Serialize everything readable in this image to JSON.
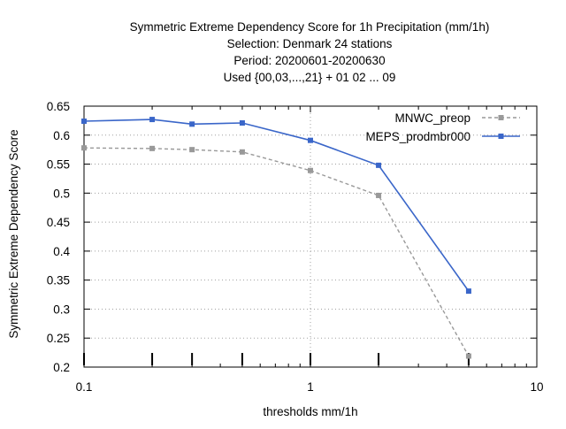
{
  "chart_data": {
    "type": "line",
    "title_lines": [
      "Symmetric Extreme Dependency Score  for 1h Precipitation (mm/1h)",
      "Selection: Denmark     24 stations",
      "Period: 20200601-20200630",
      "Used {00,03,...,21} + 01 02 ... 09"
    ],
    "xlabel": "thresholds mm/1h",
    "ylabel": "Symmetric Extreme Dependency Score",
    "x_scale": "log",
    "xlim": [
      0.1,
      10
    ],
    "ylim": [
      0.2,
      0.65
    ],
    "x_ticks": [
      {
        "value": 0.1,
        "label": "0.1"
      },
      {
        "value": 1,
        "label": "1"
      },
      {
        "value": 10,
        "label": "10"
      }
    ],
    "y_ticks": [
      {
        "value": 0.2,
        "label": "0.2"
      },
      {
        "value": 0.25,
        "label": "0.25"
      },
      {
        "value": 0.3,
        "label": "0.3"
      },
      {
        "value": 0.35,
        "label": "0.35"
      },
      {
        "value": 0.4,
        "label": "0.4"
      },
      {
        "value": 0.45,
        "label": "0.45"
      },
      {
        "value": 0.5,
        "label": "0.5"
      },
      {
        "value": 0.55,
        "label": "0.55"
      },
      {
        "value": 0.6,
        "label": "0.6"
      },
      {
        "value": 0.65,
        "label": "0.65"
      }
    ],
    "threshold_markers": [
      0.1,
      0.2,
      0.3,
      0.5,
      1,
      2,
      5
    ],
    "grid": true,
    "legend_position": "top-right",
    "series": [
      {
        "name": "MNWC_preop",
        "color": "#999999",
        "dashed": true,
        "x": [
          0.1,
          0.2,
          0.3,
          0.5,
          1,
          2,
          5
        ],
        "y": [
          0.578,
          0.577,
          0.575,
          0.571,
          0.539,
          0.496,
          0.219
        ]
      },
      {
        "name": "MEPS_prodmbr000",
        "color": "#3a66c9",
        "dashed": false,
        "x": [
          0.1,
          0.2,
          0.3,
          0.5,
          1,
          2,
          5
        ],
        "y": [
          0.624,
          0.627,
          0.619,
          0.621,
          0.591,
          0.548,
          0.331
        ]
      }
    ]
  }
}
